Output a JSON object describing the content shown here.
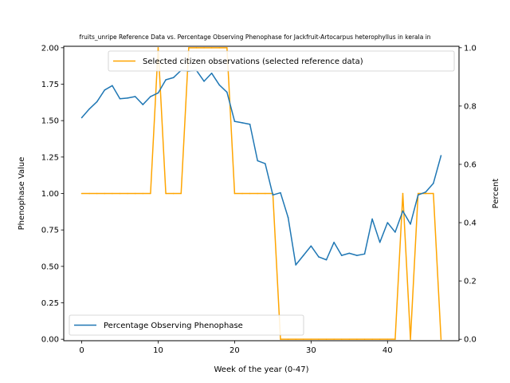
{
  "chart_data": {
    "type": "line",
    "title": "fruits_unripe Reference Data vs. Percentage Observing Phenophase for Jackfruit-Artocarpus heterophyllus in kerala in",
    "xlabel": "Week of the year (0-47)",
    "ylabel_left": "Phenophase Value",
    "ylabel_right": "Percent",
    "xlim": [
      -2.35,
      49.35
    ],
    "ylim_left": [
      -0.01,
      2.01
    ],
    "ylim_right": [
      -0.005,
      1.005
    ],
    "x_ticks": [
      0,
      10,
      20,
      30,
      40
    ],
    "y_ticks_left": [
      "0.00",
      "0.25",
      "0.50",
      "0.75",
      "1.00",
      "1.25",
      "1.50",
      "1.75",
      "2.00"
    ],
    "y_ticks_right": [
      "0.0",
      "0.2",
      "0.4",
      "0.6",
      "0.8",
      "1.0"
    ],
    "grid": false,
    "series": [
      {
        "name": "Percentage Observing Phenophase",
        "axis": "left",
        "color": "#1f77b4",
        "legend_position": "lower-left",
        "x": [
          0,
          1,
          2,
          3,
          4,
          5,
          6,
          7,
          8,
          9,
          10,
          11,
          12,
          13,
          14,
          15,
          16,
          17,
          18,
          19,
          20,
          21,
          22,
          23,
          24,
          25,
          26,
          27,
          28,
          29,
          30,
          31,
          32,
          33,
          34,
          35,
          36,
          37,
          38,
          39,
          40,
          41,
          42,
          43,
          44,
          45,
          46,
          47
        ],
        "values": [
          1.52,
          1.58,
          1.63,
          1.71,
          1.74,
          1.65,
          1.655,
          1.665,
          1.61,
          1.665,
          1.69,
          1.78,
          1.795,
          1.845,
          1.84,
          1.845,
          1.77,
          1.825,
          1.745,
          1.695,
          1.495,
          1.485,
          1.475,
          1.225,
          1.205,
          0.99,
          1.005,
          0.835,
          0.51,
          0.575,
          0.64,
          0.565,
          0.545,
          0.665,
          0.575,
          0.59,
          0.575,
          0.585,
          0.825,
          0.665,
          0.8,
          0.735,
          0.88,
          0.79,
          0.99,
          1.01,
          1.07,
          1.26
        ]
      },
      {
        "name": "Selected citizen observations (selected reference data)",
        "axis": "right",
        "color": "#ffa500",
        "legend_position": "upper-right",
        "x": [
          0,
          1,
          2,
          3,
          4,
          5,
          6,
          7,
          8,
          9,
          10,
          11,
          12,
          13,
          14,
          15,
          16,
          17,
          18,
          19,
          20,
          21,
          22,
          23,
          24,
          25,
          26,
          27,
          28,
          29,
          30,
          31,
          32,
          33,
          34,
          35,
          36,
          37,
          38,
          39,
          40,
          41,
          42,
          43,
          44,
          45,
          46,
          47
        ],
        "values": [
          0.5,
          0.5,
          0.5,
          0.5,
          0.5,
          0.5,
          0.5,
          0.5,
          0.5,
          0.5,
          1,
          0.5,
          0.5,
          0.5,
          1,
          1,
          1,
          1,
          1,
          1,
          0.5,
          0.5,
          0.5,
          0.5,
          0.5,
          0.5,
          0,
          0,
          0,
          0,
          0,
          0,
          0,
          0,
          0,
          0,
          0,
          0,
          0,
          0,
          0,
          0,
          0.5,
          0,
          0.5,
          0.5,
          0.5,
          0
        ]
      }
    ]
  }
}
